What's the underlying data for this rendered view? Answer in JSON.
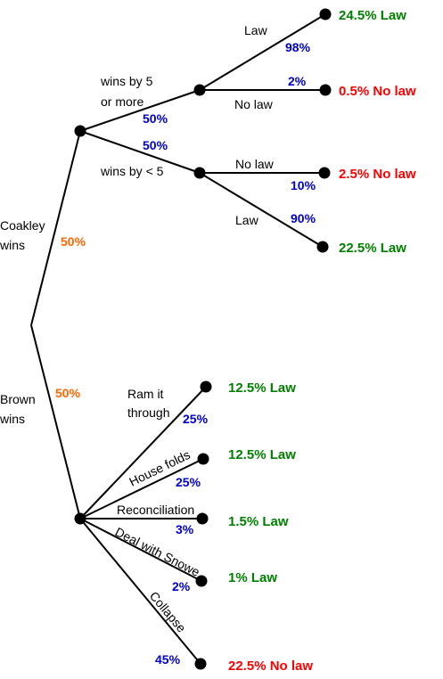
{
  "colors": {
    "probability": "#0000cc",
    "top_probability": "#ff6600",
    "law": "#008000",
    "no_law": "#ff0000"
  },
  "coakley": {
    "label_line1": "Coakley",
    "label_line2": "wins",
    "probability": "50%",
    "win5": {
      "label_line1": "wins by 5",
      "label_line2": "or more",
      "probability": "50%",
      "law": {
        "label": "Law",
        "probability": "98%",
        "outcome": "24.5% Law"
      },
      "nolaw": {
        "label": "No law",
        "probability": "2%",
        "outcome": "0.5% No law"
      }
    },
    "winlt5": {
      "label": "wins by < 5",
      "probability": "50%",
      "nolaw": {
        "label": "No law",
        "probability": "10%",
        "outcome": "2.5% No law"
      },
      "law": {
        "label": "Law",
        "probability": "90%",
        "outcome": "22.5% Law"
      }
    }
  },
  "brown": {
    "label_line1": "Brown",
    "label_line2": "wins",
    "probability": "50%",
    "ram": {
      "label_line1": "Ram it",
      "label_line2": "through",
      "probability": "25%",
      "outcome": "12.5% Law"
    },
    "house": {
      "label": "House folds",
      "probability": "25%",
      "outcome": "12.5% Law"
    },
    "recon": {
      "label": "Reconciliation",
      "probability": "3%",
      "outcome": "1.5% Law"
    },
    "snowe": {
      "label": "Deal with Snowe",
      "probability": "2%",
      "outcome": "1% Law"
    },
    "collapse": {
      "label": "Collapse",
      "probability": "45%",
      "outcome": "22.5% No law"
    }
  }
}
